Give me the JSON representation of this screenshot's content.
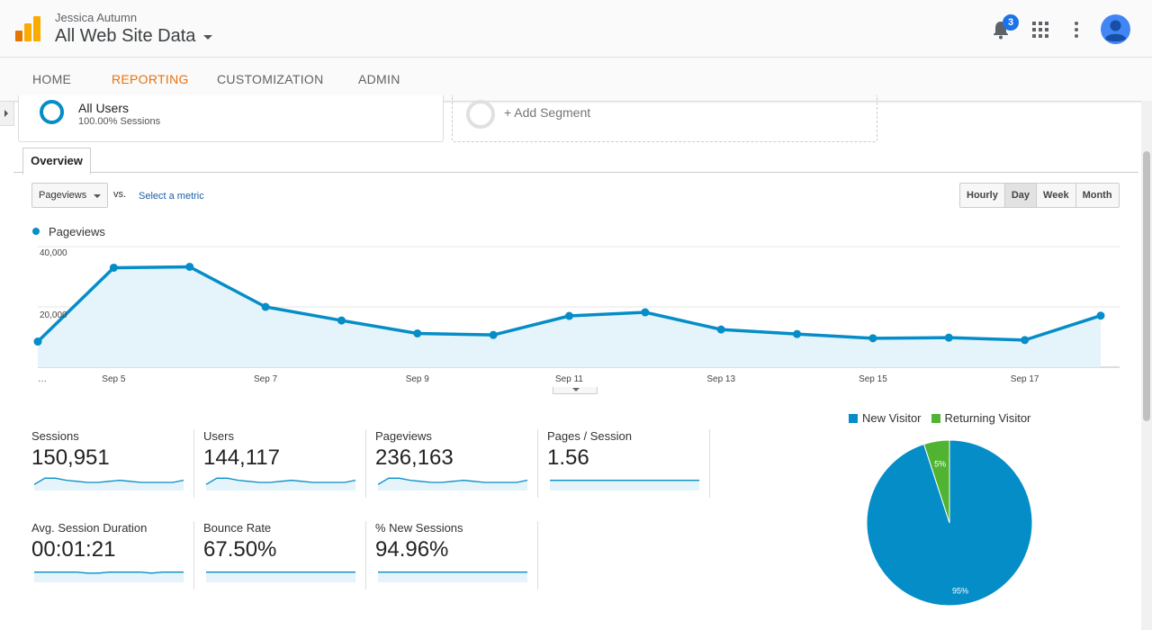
{
  "header": {
    "account_name": "Jessica Autumn",
    "property_name": "All Web Site Data",
    "notification_count": "3"
  },
  "nav": {
    "tabs": [
      {
        "label": "HOME",
        "active": false
      },
      {
        "label": "REPORTING",
        "active": true
      },
      {
        "label": "CUSTOMIZATION",
        "active": false
      },
      {
        "label": "ADMIN",
        "active": false
      }
    ]
  },
  "segments": {
    "current_name": "All Users",
    "current_sub": "100.00% Sessions",
    "add_label": "+ Add Segment"
  },
  "tab": {
    "overview": "Overview"
  },
  "controls": {
    "metric": "Pageviews",
    "vs": "vs.",
    "select_metric": "Select a metric",
    "granularity": [
      "Hourly",
      "Day",
      "Week",
      "Month"
    ],
    "granularity_active": "Day"
  },
  "chart_data": {
    "type": "area",
    "series": [
      {
        "name": "Pageviews",
        "color": "#058dc7",
        "values": [
          8500,
          33000,
          33300,
          20000,
          15500,
          11200,
          10700,
          17000,
          18200,
          12500,
          11000,
          9600,
          9800,
          9000,
          17100
        ]
      }
    ],
    "x_tick_labels": [
      "…",
      "Sep 5",
      "Sep 7",
      "Sep 9",
      "Sep 11",
      "Sep 13",
      "Sep 15",
      "Sep 17"
    ],
    "y_tick_labels": [
      "40,000",
      "20,000"
    ],
    "ylim": [
      0,
      40000
    ]
  },
  "metrics": [
    {
      "label": "Sessions",
      "value": "150,951",
      "spark": [
        4,
        10,
        10,
        8,
        7,
        6,
        6,
        7,
        8,
        7,
        6,
        6,
        6,
        6,
        8
      ]
    },
    {
      "label": "Users",
      "value": "144,117",
      "spark": [
        4,
        10,
        10,
        8,
        7,
        6,
        6,
        7,
        8,
        7,
        6,
        6,
        6,
        6,
        8
      ]
    },
    {
      "label": "Pageviews",
      "value": "236,163",
      "spark": [
        4,
        10,
        10,
        8,
        7,
        6,
        6,
        7,
        8,
        7,
        6,
        6,
        6,
        6,
        8
      ]
    },
    {
      "label": "Pages / Session",
      "value": "1.56",
      "spark": [
        8,
        8,
        8,
        8,
        8,
        8,
        8,
        8,
        8,
        8,
        8,
        8,
        8,
        8,
        8
      ]
    },
    {
      "label": "Avg. Session Duration",
      "value": "00:01:21",
      "spark": [
        8,
        8,
        8,
        8,
        8,
        7,
        7,
        8,
        8,
        8,
        8,
        7,
        8,
        8,
        8
      ]
    },
    {
      "label": "Bounce Rate",
      "value": "67.50%",
      "spark": [
        8,
        8,
        8,
        8,
        8,
        8,
        8,
        8,
        8,
        8,
        8,
        8,
        8,
        8,
        8
      ]
    },
    {
      "label": "% New Sessions",
      "value": "94.96%",
      "spark": [
        8,
        8,
        8,
        8,
        8,
        8,
        8,
        8,
        8,
        8,
        8,
        8,
        8,
        8,
        8
      ]
    }
  ],
  "pie": {
    "legend": [
      {
        "label": "New Visitor",
        "color": "#058dc7"
      },
      {
        "label": "Returning Visitor",
        "color": "#50b432"
      }
    ],
    "slices": [
      {
        "label": "95%",
        "value": 95,
        "color": "#058dc7"
      },
      {
        "label": "5%",
        "value": 5,
        "color": "#50b432"
      }
    ]
  }
}
